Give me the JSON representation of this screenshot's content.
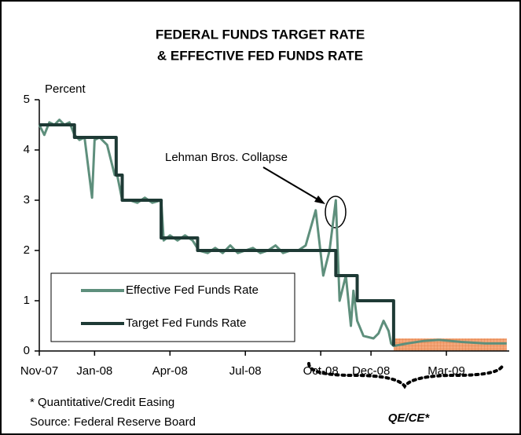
{
  "chart_data": {
    "type": "line",
    "title": [
      "FEDERAL FUNDS TARGET RATE",
      "& EFFECTIVE FED FUNDS RATE"
    ],
    "y_label": "Percent",
    "ylim": [
      0,
      5
    ],
    "yticks": [
      0,
      1,
      2,
      3,
      4,
      5
    ],
    "xlim": [
      0,
      18.7
    ],
    "xticks": [
      {
        "value": 0,
        "label": "Nov-07"
      },
      {
        "value": 2.2,
        "label": "Jan-08"
      },
      {
        "value": 5.2,
        "label": "Apr-08"
      },
      {
        "value": 8.2,
        "label": "Jul-08"
      },
      {
        "value": 11.2,
        "label": "Oct-08"
      },
      {
        "value": 13.2,
        "label": "Dec-08"
      },
      {
        "value": 16.2,
        "label": "Mar-09"
      }
    ],
    "legend": "lower left",
    "series": [
      {
        "name": "Effective Fed Funds Rate",
        "color": "#5e8f7c",
        "x": [
          0,
          0.2,
          0.4,
          0.6,
          0.8,
          1.0,
          1.2,
          1.4,
          1.6,
          1.8,
          2.1,
          2.2,
          2.4,
          2.7,
          3.0,
          3.1,
          3.3,
          3.6,
          3.9,
          4.2,
          4.5,
          4.85,
          4.95,
          5.2,
          5.5,
          5.8,
          6.1,
          6.35,
          6.7,
          7.0,
          7.3,
          7.6,
          7.9,
          8.2,
          8.5,
          8.8,
          9.1,
          9.4,
          9.7,
          10.0,
          10.3,
          10.6,
          11.0,
          11.3,
          11.55,
          11.8,
          11.95,
          12.2,
          12.4,
          12.5,
          12.65,
          12.9,
          13.3,
          13.5,
          13.7,
          13.9,
          14.0,
          14.1,
          14.65,
          15.3,
          15.9,
          16.8,
          17.75,
          18.6
        ],
        "values": [
          4.5,
          4.3,
          4.55,
          4.5,
          4.6,
          4.5,
          4.55,
          4.3,
          4.2,
          4.25,
          3.05,
          4.2,
          4.25,
          4.1,
          3.5,
          3.5,
          3.0,
          3.0,
          2.95,
          3.05,
          2.95,
          3.0,
          2.2,
          2.3,
          2.2,
          2.3,
          2.2,
          2.0,
          1.95,
          2.05,
          1.95,
          2.1,
          1.95,
          2.0,
          2.05,
          1.95,
          2.0,
          2.1,
          1.95,
          2.0,
          2.0,
          2.1,
          2.8,
          1.5,
          2.0,
          3.0,
          1.0,
          1.5,
          0.5,
          1.2,
          0.6,
          0.3,
          0.25,
          0.35,
          0.6,
          0.4,
          0.15,
          0.1,
          0.15,
          0.2,
          0.22,
          0.18,
          0.15,
          0.15
        ]
      },
      {
        "name": "Target Fed Funds Rate",
        "color": "#1e3a35",
        "x": [
          0,
          1.4,
          1.4,
          3.06,
          3.06,
          3.3,
          3.3,
          4.85,
          4.85,
          6.3,
          6.3,
          11.8,
          11.8,
          12.65,
          12.65,
          14.1,
          14.1
        ],
        "values": [
          4.5,
          4.5,
          4.25,
          4.25,
          3.5,
          3.5,
          3.0,
          3.0,
          2.25,
          2.25,
          2.0,
          2.0,
          1.5,
          1.5,
          1.0,
          1.0,
          0.1
        ]
      }
    ],
    "target_range": {
      "x": [
        14.1,
        18.6
      ],
      "values": [
        0,
        0.25
      ],
      "color": "#f4a77a"
    },
    "annotations": [
      "Lehman Bros. Collapse",
      "QE/CE*"
    ],
    "footnotes": [
      "* Quantitative/Credit Easing",
      "Source: Federal Reserve Board"
    ]
  }
}
